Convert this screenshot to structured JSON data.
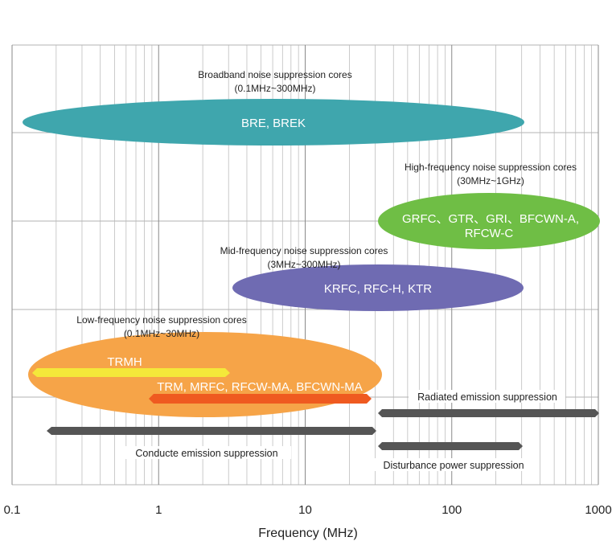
{
  "chart_data": {
    "type": "range",
    "xlabel": "Frequency (MHz)",
    "x_scale": "log",
    "xlim": [
      0.1,
      1000
    ],
    "x_ticks": [
      {
        "value": 0.1,
        "label": "0.1"
      },
      {
        "value": 1,
        "label": "1"
      },
      {
        "value": 10,
        "label": "10"
      },
      {
        "value": 100,
        "label": "100"
      },
      {
        "value": 1000,
        "label": "1000"
      }
    ],
    "grid": true,
    "bands": [
      {
        "id": "broadband",
        "title": "Broadband noise suppression cores",
        "range_text": "(0.1MHz~300MHz)",
        "products": [
          "BRE, BREK"
        ],
        "from": 0.1,
        "to": 300,
        "color": "#3fa6ad"
      },
      {
        "id": "high",
        "title": "High-frequency noise suppression cores",
        "range_text": "(30MHz~1GHz)",
        "products": [
          "GRFC、GTR、GRI、BFCWN-A,",
          "RFCW-C"
        ],
        "from": 30,
        "to": 1000,
        "color": "#6fbe45"
      },
      {
        "id": "mid",
        "title": "Mid-frequency noise suppression cores",
        "range_text": "(3MHz~300MHz)",
        "products": [
          "KRFC, RFC-H, KTR"
        ],
        "from": 3,
        "to": 300,
        "color": "#6f6bb2"
      },
      {
        "id": "low",
        "title": "Low-frequency noise suppression cores",
        "range_text": "(0.1MHz~30MHz)",
        "products": [],
        "from": 0.1,
        "to": 30,
        "color": "#f6a448"
      }
    ],
    "sub_ranges": [
      {
        "label": "TRMH",
        "from": 0.15,
        "to": 3,
        "color": "#f4e83a"
      },
      {
        "label": "TRM, MRFC, RFCW-MA, BFCWN-MA",
        "from": 0.9,
        "to": 30,
        "color": "#ef5a20"
      }
    ],
    "emission_ranges": [
      {
        "label": "Radiated emission suppression",
        "from": 30,
        "to": 1000,
        "color": "#555555"
      },
      {
        "label": "Conducte  emission suppression",
        "from": 0.15,
        "to": 30,
        "color": "#555555"
      },
      {
        "label": "Disturbance power suppression",
        "from": 30,
        "to": 300,
        "color": "#555555"
      }
    ]
  }
}
